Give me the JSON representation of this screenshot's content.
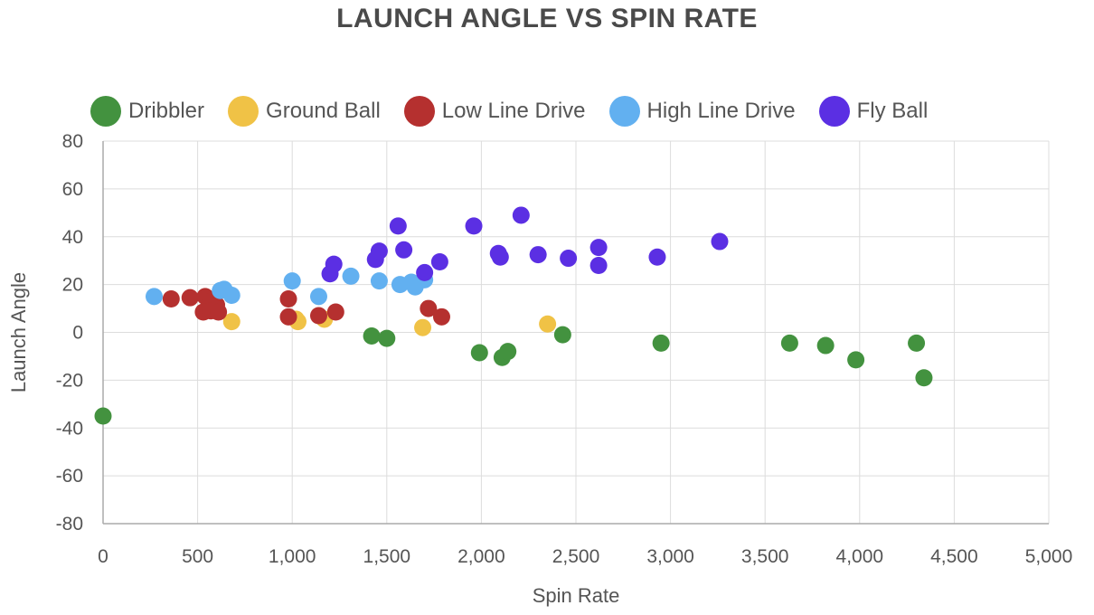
{
  "chart_data": {
    "type": "scatter",
    "title": "LAUNCH ANGLE VS SPIN RATE",
    "xlabel": "Spin Rate",
    "ylabel": "Launch Angle",
    "xlim": [
      0,
      5000
    ],
    "ylim": [
      -80,
      80
    ],
    "x_ticks": [
      "0",
      "500",
      "1,000",
      "1,500",
      "2,000",
      "2,500",
      "3,000",
      "3,500",
      "4,000",
      "4,500",
      "5,000"
    ],
    "y_ticks": [
      "80",
      "60",
      "40",
      "20",
      "0",
      "-20",
      "-40",
      "-60",
      "-80"
    ],
    "grid": true,
    "legend_position": "top-left",
    "series": [
      {
        "name": "Dribbler",
        "color": "#43923f",
        "points": [
          [
            0,
            -35
          ],
          [
            1420,
            -1.5
          ],
          [
            1500,
            -2.5
          ],
          [
            1990,
            -8.5
          ],
          [
            2110,
            -10.5
          ],
          [
            2140,
            -8
          ],
          [
            2430,
            -1
          ],
          [
            2950,
            -4.5
          ],
          [
            3630,
            -4.5
          ],
          [
            3820,
            -5.5
          ],
          [
            3980,
            -11.5
          ],
          [
            4300,
            -4.5
          ],
          [
            4340,
            -19
          ]
        ]
      },
      {
        "name": "Ground Ball",
        "color": "#f0c246",
        "points": [
          [
            680,
            4.5
          ],
          [
            1020,
            5.5
          ],
          [
            1030,
            4.5
          ],
          [
            1170,
            5.5
          ],
          [
            1690,
            2
          ],
          [
            2350,
            3.5
          ]
        ]
      },
      {
        "name": "Low Line Drive",
        "color": "#b5302f",
        "points": [
          [
            360,
            14
          ],
          [
            460,
            14.5
          ],
          [
            540,
            15
          ],
          [
            570,
            13
          ],
          [
            600,
            11.5
          ],
          [
            530,
            8.5
          ],
          [
            570,
            9
          ],
          [
            610,
            8.5
          ],
          [
            980,
            14
          ],
          [
            980,
            6.5
          ],
          [
            1140,
            7
          ],
          [
            1230,
            8.5
          ],
          [
            1720,
            10
          ],
          [
            1790,
            6.5
          ]
        ]
      },
      {
        "name": "High Line Drive",
        "color": "#62b0f0",
        "points": [
          [
            270,
            15
          ],
          [
            620,
            17.5
          ],
          [
            640,
            18
          ],
          [
            680,
            15.5
          ],
          [
            1000,
            21.5
          ],
          [
            1140,
            15
          ],
          [
            1310,
            23.5
          ],
          [
            1460,
            21.5
          ],
          [
            1570,
            20
          ],
          [
            1630,
            21
          ],
          [
            1650,
            19
          ],
          [
            1700,
            22
          ]
        ]
      },
      {
        "name": "Fly Ball",
        "color": "#5b2fe3",
        "points": [
          [
            1200,
            24.5
          ],
          [
            1220,
            28.5
          ],
          [
            1440,
            30.5
          ],
          [
            1460,
            34
          ],
          [
            1560,
            44.5
          ],
          [
            1590,
            34.5
          ],
          [
            1700,
            25
          ],
          [
            1780,
            29.5
          ],
          [
            1960,
            44.5
          ],
          [
            2090,
            33
          ],
          [
            2100,
            31.5
          ],
          [
            2210,
            49
          ],
          [
            2300,
            32.5
          ],
          [
            2460,
            31
          ],
          [
            2620,
            35.5
          ],
          [
            2620,
            28
          ],
          [
            2930,
            31.5
          ],
          [
            3260,
            38
          ]
        ]
      }
    ]
  }
}
